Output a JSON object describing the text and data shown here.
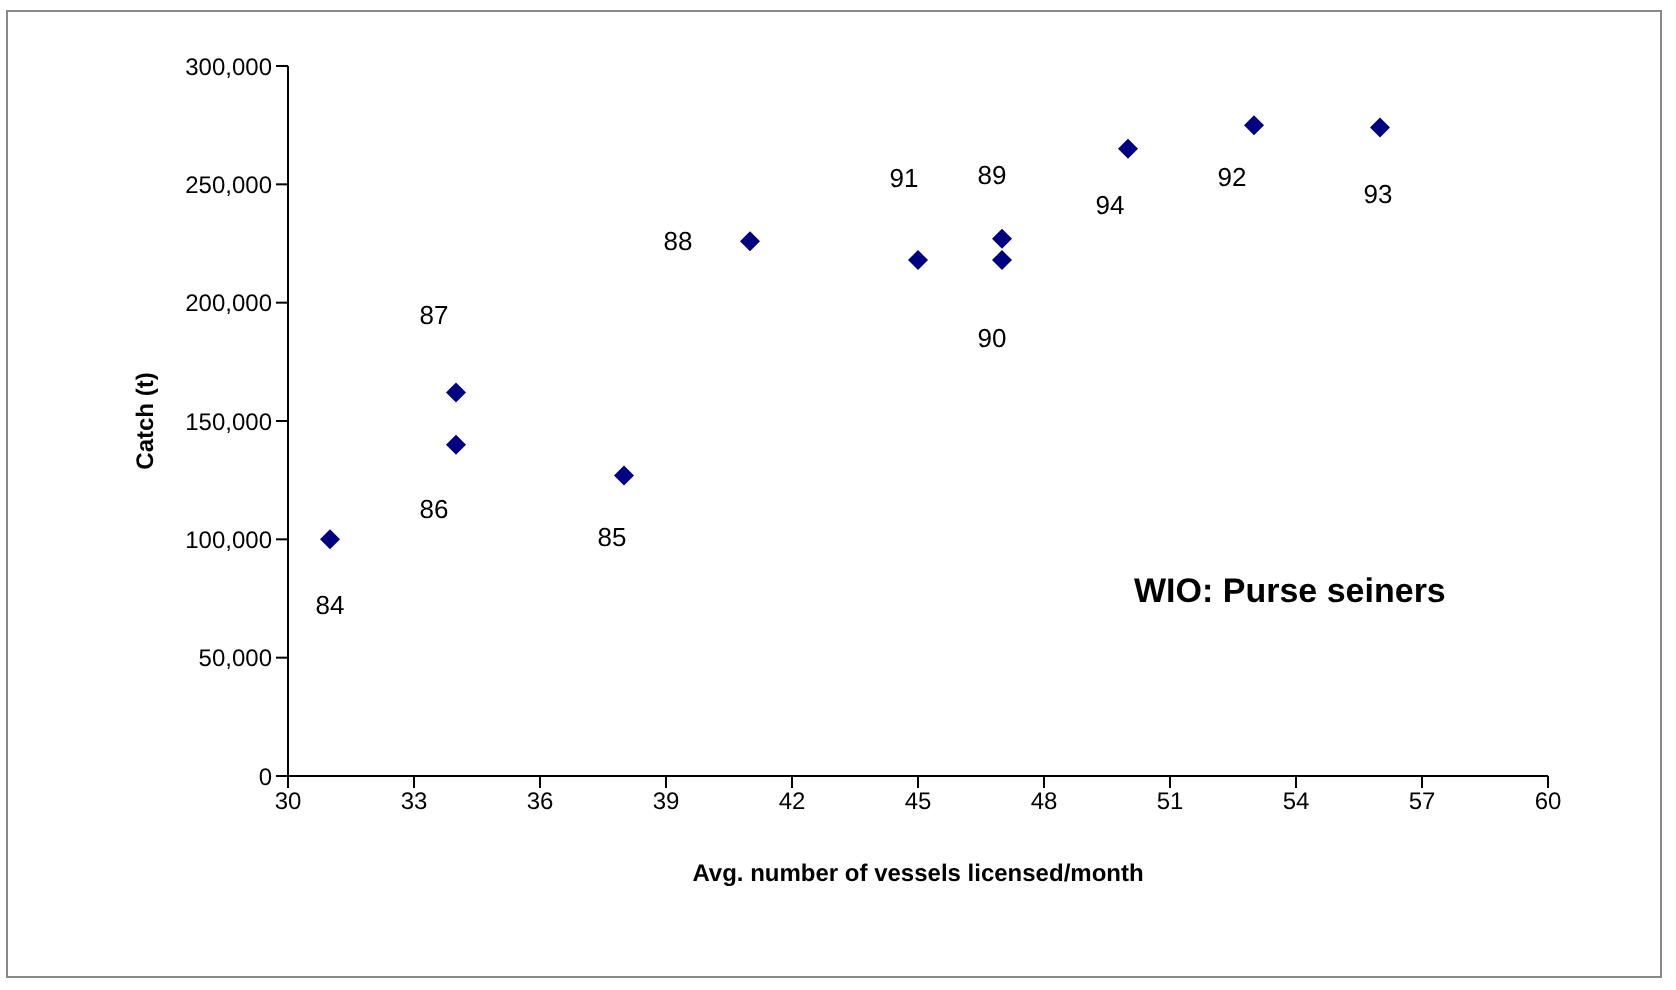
{
  "chart_data": {
    "type": "scatter",
    "xlabel": "Avg. number of vessels licensed/month",
    "ylabel": "Catch (t)",
    "x": [
      31,
      34,
      34,
      38,
      41,
      45,
      47,
      47,
      50,
      53,
      56
    ],
    "series": [
      {
        "color": "#000080",
        "values": [
          100000,
          140000,
          162000,
          127000,
          226000,
          218000,
          227000,
          218000,
          265000,
          275000,
          274000
        ]
      }
    ],
    "xlim": [
      30,
      60
    ],
    "xticks": [
      30,
      33,
      36,
      39,
      42,
      45,
      48,
      51,
      54,
      57,
      60
    ],
    "ylim": [
      0,
      300000
    ],
    "yticks": [
      0,
      {
        "value": 50000,
        "label": "50,000"
      },
      {
        "value": 100000,
        "label": "100,000"
      },
      {
        "value": 150000,
        "label": "150,000"
      },
      {
        "value": 200000,
        "label": "200,000"
      },
      {
        "value": 250000,
        "label": "250,000"
      },
      {
        "value": 300000,
        "label": "300,000"
      }
    ],
    "marker": "diamond",
    "grid": false,
    "legend": false,
    "annotations": [
      {
        "text": "84",
        "x": 31,
        "y": 100000
      },
      {
        "text": "86",
        "x": 34,
        "y": 140000
      },
      {
        "text": "87",
        "x": 34,
        "y": 162000
      },
      {
        "text": "85",
        "x": 38,
        "y": 127000
      },
      {
        "text": "88",
        "x": 41,
        "y": 226000
      },
      {
        "text": "91",
        "x": 45,
        "y": 218000
      },
      {
        "text": "89",
        "x": 47,
        "y": 227000
      },
      {
        "text": "90",
        "x": 47,
        "y": 218000
      },
      {
        "text": "94",
        "x": 50,
        "y": 265000
      },
      {
        "text": "92",
        "x": 53,
        "y": 275000
      },
      {
        "text": "93",
        "x": 56,
        "y": 274000
      },
      "WIO: Purse seiners"
    ]
  }
}
